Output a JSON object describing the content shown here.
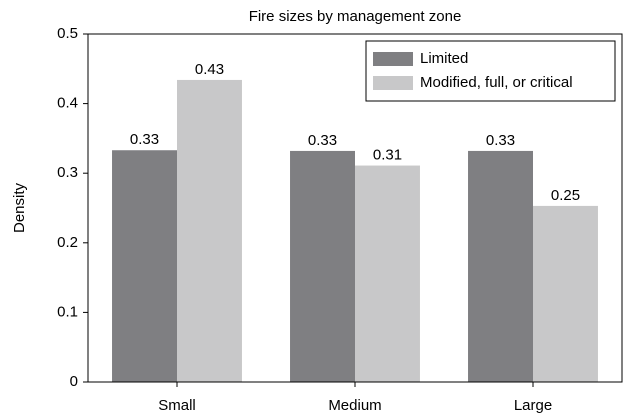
{
  "chart_data": {
    "type": "bar",
    "title": "Fire sizes by management zone",
    "y_label": "Density",
    "categories": [
      "Small",
      "Medium",
      "Large"
    ],
    "series": [
      {
        "name": "Limited",
        "color": "#7f7f82",
        "values": [
          0.333,
          0.332,
          0.332
        ],
        "value_labels": [
          "0.33",
          "0.33",
          "0.33"
        ]
      },
      {
        "name": "Modified, full, or critical",
        "color": "#c8c8c9",
        "values": [
          0.434,
          0.311,
          0.253
        ],
        "value_labels": [
          "0.43",
          "0.31",
          "0.25"
        ]
      }
    ],
    "ylim": [
      0,
      0.5
    ],
    "yticks": [
      0,
      0.1,
      0.2,
      0.3,
      0.4,
      0.5
    ],
    "grid": false,
    "legend": "upper right"
  }
}
